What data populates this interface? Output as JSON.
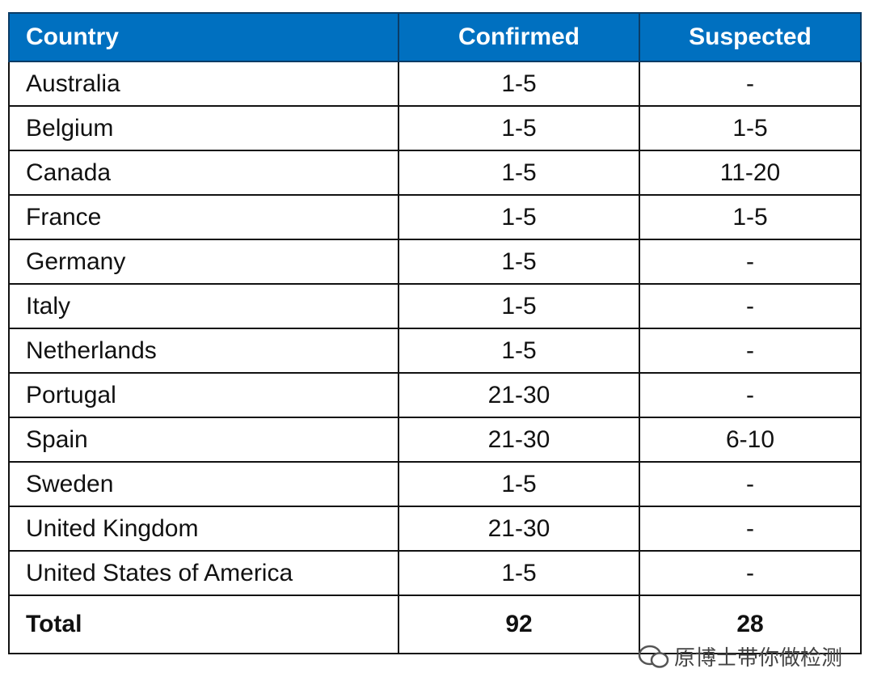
{
  "table": {
    "header": [
      "Country",
      "Confirmed",
      "Suspected"
    ],
    "rows": [
      [
        "Australia",
        "1-5",
        "-"
      ],
      [
        "Belgium",
        "1-5",
        "1-5"
      ],
      [
        "Canada",
        "1-5",
        "11-20"
      ],
      [
        "France",
        "1-5",
        "1-5"
      ],
      [
        "Germany",
        "1-5",
        "-"
      ],
      [
        "Italy",
        "1-5",
        "-"
      ],
      [
        "Netherlands",
        "1-5",
        "-"
      ],
      [
        "Portugal",
        "21-30",
        "-"
      ],
      [
        "Spain",
        "21-30",
        "6-10"
      ],
      [
        "Sweden",
        "1-5",
        "-"
      ],
      [
        "United Kingdom",
        "21-30",
        "-"
      ],
      [
        "United States of America",
        "1-5",
        "-"
      ]
    ],
    "total": [
      "Total",
      92,
      28
    ]
  },
  "watermark": "原博士带你做检测"
}
